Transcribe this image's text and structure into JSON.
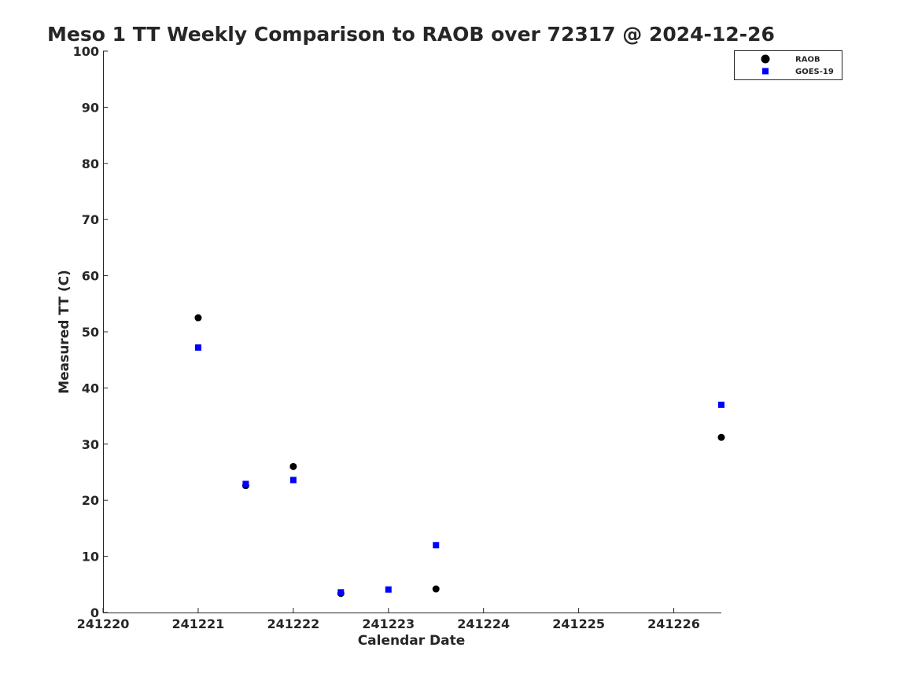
{
  "chart_data": {
    "type": "scatter",
    "title": "Meso 1 TT Weekly Comparison to RAOB over 72317 @ 2024-12-26",
    "xlabel": "Calendar Date",
    "ylabel": "Measured TT (C)",
    "xlim": [
      241220,
      241226.5
    ],
    "ylim": [
      0,
      100
    ],
    "x_ticks": [
      "241220",
      "241221",
      "241222",
      "241223",
      "241224",
      "241225",
      "241226"
    ],
    "y_ticks": [
      "0",
      "10",
      "20",
      "30",
      "40",
      "50",
      "60",
      "70",
      "80",
      "90",
      "100"
    ],
    "grid": false,
    "legend_position": "top-right",
    "series": [
      {
        "name": "RAOB",
        "marker": "circle",
        "color": "#000000",
        "points": [
          {
            "x": 241221.0,
            "y": 52.5
          },
          {
            "x": 241221.5,
            "y": 22.6
          },
          {
            "x": 241222.0,
            "y": 26.0
          },
          {
            "x": 241222.5,
            "y": 3.4
          },
          {
            "x": 241223.5,
            "y": 4.2
          },
          {
            "x": 241226.5,
            "y": 31.2
          }
        ]
      },
      {
        "name": "GOES-19",
        "marker": "square",
        "color": "#0000ff",
        "points": [
          {
            "x": 241221.0,
            "y": 47.2
          },
          {
            "x": 241221.5,
            "y": 22.9
          },
          {
            "x": 241222.0,
            "y": 23.6
          },
          {
            "x": 241222.5,
            "y": 3.6
          },
          {
            "x": 241223.0,
            "y": 4.1
          },
          {
            "x": 241223.5,
            "y": 12.0
          },
          {
            "x": 241226.5,
            "y": 37.0
          }
        ]
      }
    ]
  }
}
